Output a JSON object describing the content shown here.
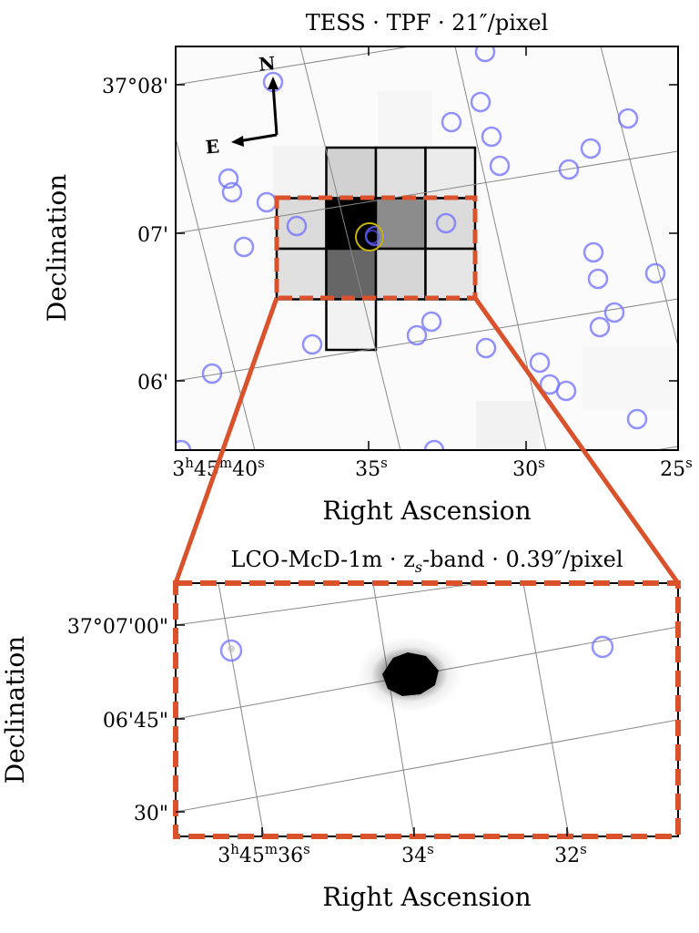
{
  "figure": {
    "top_panel": {
      "title": "TESS · TPF · 21″/pixel",
      "xlabel": "Right Ascension",
      "ylabel": "Declination",
      "compass": {
        "north": "N",
        "east": "E"
      },
      "ytick_labels": [
        "37°08'",
        "07'",
        "06'"
      ],
      "xtick_labels": [
        {
          "base": "3",
          "s1": "h",
          "mid": "45",
          "s2": "m",
          "end": "40",
          "s3": "s"
        },
        {
          "base": "35",
          "s1": "s"
        },
        {
          "base": "30",
          "s1": "s"
        },
        {
          "base": "25",
          "s1": "s"
        }
      ]
    },
    "bottom_panel": {
      "title_parts": [
        "LCO-McD-1m · z",
        "s",
        "-band · 0.39″/pixel"
      ],
      "xlabel": "Right Ascension",
      "ylabel": "Declination",
      "ytick_labels": [
        "37°07'00\"",
        "06'45\"",
        "30\""
      ],
      "xtick_labels": [
        {
          "base": "3",
          "s1": "h",
          "mid": "45",
          "s2": "m",
          "end": "36",
          "s3": "s"
        },
        {
          "base": "34",
          "s1": "s"
        },
        {
          "base": "32",
          "s1": "s"
        }
      ]
    }
  },
  "chart_data": [
    {
      "type": "heatmap",
      "title": "TESS · TPF · 21″/pixel",
      "xlabel": "Right Ascension",
      "ylabel": "Declination",
      "x_range": [
        "3h45m41.5s",
        "3h45m24.5s"
      ],
      "y_range": [
        "37°05'35\"",
        "37°08'20\""
      ],
      "aperture_pixels": {
        "rows": [
          {
            "cells": [
              null,
              0.18,
              0.12,
              0.08,
              null
            ]
          },
          {
            "cells": [
              0.14,
              1.0,
              0.45,
              0.14,
              null
            ]
          },
          {
            "cells": [
              0.12,
              0.6,
              0.16,
              0.1,
              null
            ]
          },
          {
            "cells": [
              null,
              0.05,
              null,
              null,
              null
            ]
          }
        ]
      },
      "target_marker": {
        "ra": "3h45m34.9s",
        "dec": "37°06'59\"",
        "color": "#c8b400"
      },
      "field_sources_count": 33,
      "source_marker_color": "#6f6fff",
      "zoom_box_color": "#d9522b"
    },
    {
      "type": "heatmap",
      "title": "LCO-McD-1m · z_s-band · 0.39″/pixel",
      "xlabel": "Right Ascension",
      "ylabel": "Declination",
      "x_range": [
        "3h45m37.0s",
        "3h45m30.5s"
      ],
      "y_range": [
        "37°06'27\"",
        "37°07'05\""
      ],
      "target_star": {
        "ra": "3h45m34.1s",
        "dec": "37°06'51\""
      },
      "field_sources": [
        {
          "ra": "3h45m36.3s",
          "dec": "37°06'56\""
        },
        {
          "ra": "3h45m31.4s",
          "dec": "37°06'57\""
        }
      ],
      "source_marker_color": "#6f6fff",
      "frame_color": "#d9522b"
    }
  ]
}
